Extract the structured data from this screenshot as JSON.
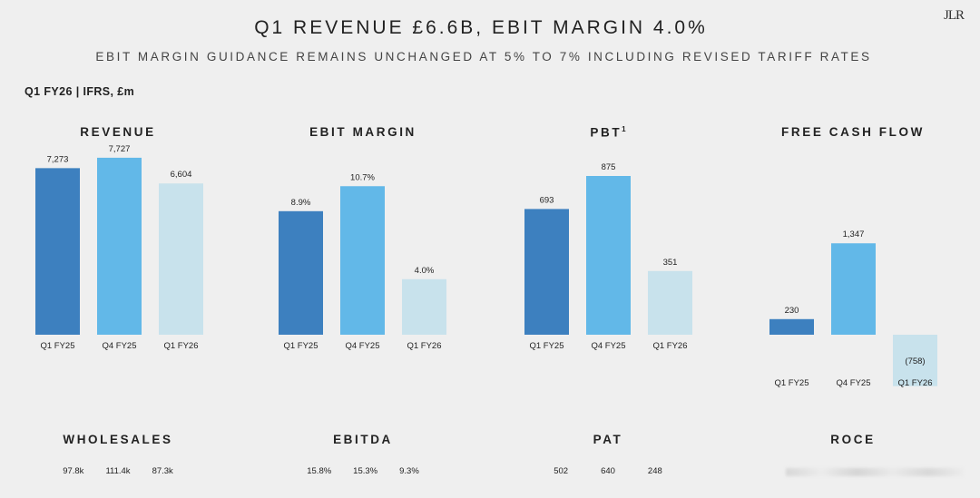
{
  "header": {
    "title": "Q1 REVENUE £6.6B, EBIT MARGIN 4.0%",
    "subtitle": "EBIT MARGIN GUIDANCE REMAINS UNCHANGED AT 5% TO 7% INCLUDING REVISED TARIFF RATES",
    "logo": "JLR",
    "units": "Q1 FY26 | IFRS, £m"
  },
  "colors": {
    "q1_fy25": "#3d80bf",
    "q4_fy25": "#62b8e8",
    "q1_fy26": "#c8e2ec"
  },
  "chart_data": [
    {
      "type": "bar",
      "title": "REVENUE",
      "categories": [
        "Q1 FY25",
        "Q4 FY25",
        "Q1 FY26"
      ],
      "values": [
        7273,
        7727,
        6604
      ],
      "data_labels": [
        "7,273",
        "7,727",
        "6,604"
      ],
      "ylim": [
        0,
        8000
      ]
    },
    {
      "type": "bar",
      "title": "EBIT MARGIN",
      "categories": [
        "Q1 FY25",
        "Q4 FY25",
        "Q1 FY26"
      ],
      "values": [
        8.9,
        10.7,
        4.0
      ],
      "data_labels": [
        "8.9%",
        "10.7%",
        "4.0%"
      ],
      "ylim": [
        0,
        13.2
      ]
    },
    {
      "type": "bar",
      "title": "PBT",
      "title_superscript": "1",
      "categories": [
        "Q1 FY25",
        "Q4 FY25",
        "Q1 FY26"
      ],
      "values": [
        693,
        875,
        351
      ],
      "data_labels": [
        "693",
        "875",
        "351"
      ],
      "ylim": [
        0,
        1010
      ]
    },
    {
      "type": "bar",
      "title": "FREE CASH FLOW",
      "categories": [
        "Q1 FY25",
        "Q4 FY25",
        "Q1 FY26"
      ],
      "values": [
        230,
        1347,
        -758
      ],
      "data_labels": [
        "230",
        "1,347",
        "(758)"
      ],
      "ylim": [
        -758,
        2700
      ]
    }
  ],
  "metrics": [
    {
      "title": "WHOLESALES",
      "values": [
        "97.8k",
        "111.4k",
        "87.3k"
      ]
    },
    {
      "title": "EBITDA",
      "values": [
        "15.8%",
        "15.3%",
        "9.3%"
      ]
    },
    {
      "title": "PAT",
      "values": [
        "502",
        "640",
        "248"
      ]
    },
    {
      "title": "ROCE",
      "values": []
    }
  ]
}
